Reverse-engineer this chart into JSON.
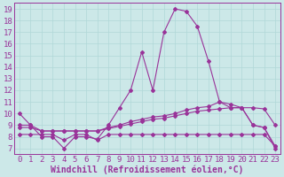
{
  "bg_color": "#cce8e8",
  "grid_color": "#b0d8d8",
  "line_color": "#993399",
  "xlim": [
    -0.5,
    23.5
  ],
  "ylim": [
    6.5,
    19.5
  ],
  "x_ticks": [
    0,
    1,
    2,
    3,
    4,
    5,
    6,
    7,
    8,
    9,
    10,
    11,
    12,
    13,
    14,
    15,
    16,
    17,
    18,
    19,
    20,
    21,
    22,
    23
  ],
  "y_ticks": [
    7,
    8,
    9,
    10,
    11,
    12,
    13,
    14,
    15,
    16,
    17,
    18,
    19
  ],
  "series_main": [
    10.0,
    9.0,
    8.0,
    8.0,
    7.0,
    8.0,
    8.0,
    7.8,
    9.0,
    10.5,
    12.0,
    15.3,
    12.0,
    17.0,
    19.0,
    18.8,
    17.5,
    14.5,
    11.0,
    10.5,
    10.5,
    9.0,
    8.8,
    7.0
  ],
  "series_rising1": [
    9.0,
    9.0,
    8.5,
    8.5,
    8.5,
    8.5,
    8.5,
    8.5,
    8.8,
    9.0,
    9.3,
    9.5,
    9.7,
    9.8,
    10.0,
    10.3,
    10.5,
    10.6,
    11.0,
    10.8,
    10.5,
    9.0,
    8.8,
    7.2
  ],
  "series_rising2": [
    8.8,
    8.8,
    8.5,
    8.5,
    8.5,
    8.5,
    8.5,
    8.5,
    8.7,
    8.9,
    9.1,
    9.3,
    9.5,
    9.6,
    9.8,
    10.0,
    10.2,
    10.3,
    10.4,
    10.5,
    10.5,
    10.5,
    10.4,
    9.0
  ],
  "series_flat": [
    8.2,
    8.2,
    8.2,
    8.2,
    7.7,
    8.2,
    8.2,
    7.7,
    8.2,
    8.2,
    8.2,
    8.2,
    8.2,
    8.2,
    8.2,
    8.2,
    8.2,
    8.2,
    8.2,
    8.2,
    8.2,
    8.2,
    8.2,
    7.2
  ],
  "xlabel": "Windchill (Refroidissement éolien,°C)",
  "tick_fontsize": 6.5,
  "xlabel_fontsize": 7.0
}
